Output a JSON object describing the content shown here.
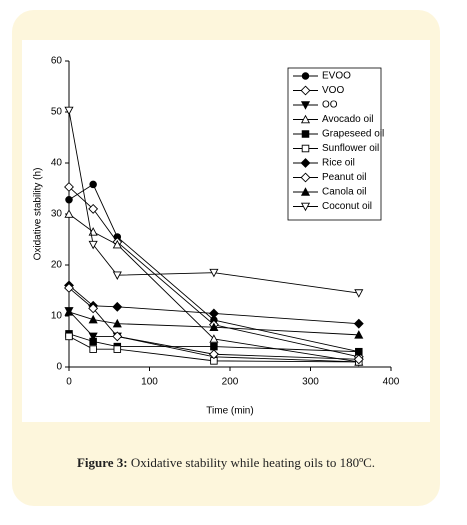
{
  "chart_data": {
    "type": "line",
    "x_label": "Time (min)",
    "y_label": "Oxidative stability (h)",
    "x": [
      0,
      30,
      60,
      180,
      360
    ],
    "xlim": [
      0,
      400
    ],
    "xticks": [
      0,
      100,
      200,
      300,
      400
    ],
    "ylim": [
      0,
      60
    ],
    "yticks": [
      0,
      10,
      20,
      30,
      40,
      50,
      60
    ],
    "legend_position": "upper right",
    "series": [
      {
        "name": "EVOO",
        "color": "#000000",
        "marker": "circle",
        "filled": true,
        "values": [
          32.8,
          35.8,
          25.5,
          9.2,
          3
        ]
      },
      {
        "name": "VOO",
        "color": "#000000",
        "marker": "diamond",
        "filled": false,
        "values": [
          35.3,
          31,
          24.5,
          8.3,
          2
        ]
      },
      {
        "name": "OO",
        "color": "#000000",
        "marker": "tri-down",
        "filled": true,
        "values": [
          11,
          6,
          6,
          2,
          1
        ]
      },
      {
        "name": "Avocado oil",
        "color": "#000000",
        "marker": "tri-up",
        "filled": false,
        "values": [
          30,
          26.5,
          24,
          5.5,
          1
        ]
      },
      {
        "name": "Grapeseed oil",
        "color": "#000000",
        "marker": "square",
        "filled": true,
        "values": [
          6.5,
          5,
          4,
          4,
          3
        ]
      },
      {
        "name": "Sunflower oil",
        "color": "#000000",
        "marker": "square",
        "filled": false,
        "values": [
          6,
          3.5,
          3.5,
          1.2,
          1
        ]
      },
      {
        "name": "Rice oil",
        "color": "#000000",
        "marker": "diamond",
        "filled": true,
        "values": [
          16,
          12,
          11.8,
          10.5,
          8.5
        ]
      },
      {
        "name": "Peanut oil",
        "color": "#000000",
        "marker": "diamond",
        "filled": false,
        "values": [
          15.5,
          11.5,
          6,
          2.5,
          1.5
        ]
      },
      {
        "name": "Canola oil",
        "color": "#000000",
        "marker": "tri-up",
        "filled": true,
        "values": [
          10.8,
          9.3,
          8.5,
          7.8,
          6.3
        ]
      },
      {
        "name": "Coconut oil",
        "color": "#000000",
        "marker": "tri-down",
        "filled": false,
        "values": [
          50.3,
          24,
          18,
          18.5,
          14.5
        ]
      }
    ]
  },
  "caption": {
    "label": "Figure 3:",
    "text": "Oxidative stability while heating oils to 180ºC."
  }
}
